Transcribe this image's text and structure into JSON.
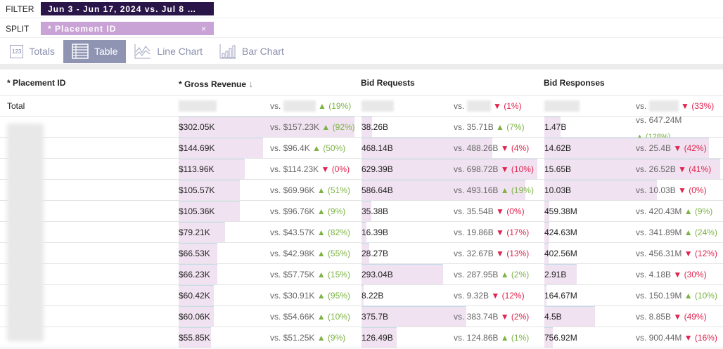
{
  "filter": {
    "label": "FILTER",
    "value": "Jun 3 - Jun 17, 2024 vs. Jul 8 …"
  },
  "split": {
    "label": "SPLIT",
    "value": "* Placement ID",
    "close_icon": "×"
  },
  "views": [
    {
      "label": "Totals",
      "icon": "123"
    },
    {
      "label": "Table",
      "icon": "table-icon",
      "active": true
    },
    {
      "label": "Line Chart",
      "icon": "line-chart-icon"
    },
    {
      "label": "Bar Chart",
      "icon": "bar-chart-icon"
    }
  ],
  "columns": {
    "placement": "* Placement ID",
    "revenue": "* Gross Revenue",
    "revenue_sort": "↓",
    "requests": "Bid Requests",
    "responses": "Bid Responses"
  },
  "total": {
    "label": "Total",
    "vs": "vs.",
    "revenue_delta": "▲ (19%)",
    "requests_delta": "▼ (1%)",
    "responses_delta": "▼ (33%)"
  },
  "colors": {
    "up": "#7cb342",
    "down": "#e0234e",
    "filter_bg": "#2a1548",
    "split_bg": "#c9a3d6",
    "bar": "#f0e2f0"
  },
  "rows": [
    [
      "$302.05K",
      "vs. $157.23K",
      "▲ (92%)",
      "38.26B",
      "vs. 35.71B",
      "▲ (7%)",
      "1.47B",
      "vs. 647.24M",
      "▲ (128%)"
    ],
    [
      "$144.69K",
      "vs. $96.4K",
      "▲ (50%)",
      "468.14B",
      "vs. 488.26B",
      "▼ (4%)",
      "14.62B",
      "vs. 25.4B",
      "▼ (42%)"
    ],
    [
      "$113.96K",
      "vs. $114.23K",
      "▼ (0%)",
      "629.39B",
      "vs. 698.72B",
      "▼ (10%)",
      "15.65B",
      "vs. 26.52B",
      "▼ (41%)"
    ],
    [
      "$105.57K",
      "vs. $69.96K",
      "▲ (51%)",
      "586.64B",
      "vs. 493.16B",
      "▲ (19%)",
      "10.03B",
      "vs. 10.03B",
      "▼ (0%)"
    ],
    [
      "$105.36K",
      "vs. $96.76K",
      "▲ (9%)",
      "35.38B",
      "vs. 35.54B",
      "▼ (0%)",
      "459.38M",
      "vs. 420.43M",
      "▲ (9%)"
    ],
    [
      "$79.21K",
      "vs. $43.57K",
      "▲ (82%)",
      "16.39B",
      "vs. 19.86B",
      "▼ (17%)",
      "424.63M",
      "vs. 341.89M",
      "▲ (24%)"
    ],
    [
      "$66.53K",
      "vs. $42.98K",
      "▲ (55%)",
      "28.27B",
      "vs. 32.67B",
      "▼ (13%)",
      "402.56M",
      "vs. 456.31M",
      "▼ (12%)"
    ],
    [
      "$66.23K",
      "vs. $57.75K",
      "▲ (15%)",
      "293.04B",
      "vs. 287.95B",
      "▲ (2%)",
      "2.91B",
      "vs. 4.18B",
      "▼ (30%)"
    ],
    [
      "$60.42K",
      "vs. $30.91K",
      "▲ (95%)",
      "8.22B",
      "vs. 9.32B",
      "▼ (12%)",
      "164.67M",
      "vs. 150.19M",
      "▲ (10%)"
    ],
    [
      "$60.06K",
      "vs. $54.66K",
      "▲ (10%)",
      "375.7B",
      "vs. 383.74B",
      "▼ (2%)",
      "4.5B",
      "vs. 8.85B",
      "▼ (49%)"
    ],
    [
      "$55.85K",
      "vs. $51.25K",
      "▲ (9%)",
      "126.49B",
      "vs. 124.86B",
      "▲ (1%)",
      "756.92M",
      "vs. 900.44M",
      "▼ (16%)"
    ]
  ]
}
